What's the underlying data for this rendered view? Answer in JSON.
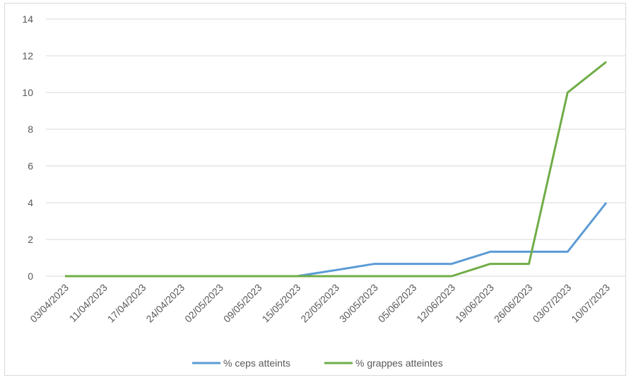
{
  "chart_data": {
    "type": "line",
    "categories": [
      "03/04/2023",
      "11/04/2023",
      "17/04/2023",
      "24/04/2023",
      "02/05/2023",
      "09/05/2023",
      "15/05/2023",
      "22/05/2023",
      "30/05/2023",
      "05/06/2023",
      "12/06/2023",
      "19/06/2023",
      "26/06/2023",
      "03/07/2023",
      "10/07/2023"
    ],
    "series": [
      {
        "name": "% ceps atteints",
        "color": "#5b9bd5",
        "values": [
          0,
          0,
          0,
          0,
          0,
          0,
          0,
          0.33,
          0.67,
          0.67,
          0.67,
          1.33,
          1.33,
          1.33,
          4
        ]
      },
      {
        "name": "% grappes atteintes",
        "color": "#70ad47",
        "values": [
          0,
          0,
          0,
          0,
          0,
          0,
          0,
          0,
          0,
          0,
          0,
          0.67,
          0.67,
          10,
          11.67
        ]
      }
    ],
    "yticks": [
      "0",
      "2",
      "4",
      "6",
      "8",
      "10",
      "12",
      "14"
    ],
    "ylim": [
      0,
      14
    ],
    "grid": true,
    "legend_position": "bottom"
  }
}
